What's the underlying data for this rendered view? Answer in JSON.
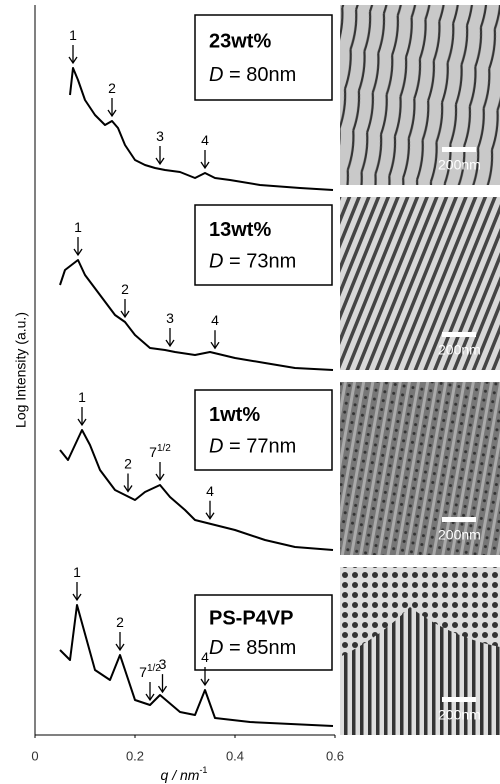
{
  "chart_data": {
    "type": "line",
    "ylabel": "Log Intensity (a.u.)",
    "xlabel": {
      "text": "q / nm",
      "sup": "-1"
    },
    "xlim": [
      0,
      0.6
    ],
    "xticks": [
      0,
      0.2,
      0.4,
      0.6
    ],
    "ylim": [
      0,
      73
    ],
    "color": "#000000",
    "series": [
      {
        "name": "23wt%",
        "spacing": {
          "symbol": "D",
          "text": " = 80nm"
        },
        "scale_bar": "200nm",
        "x": [
          0.07,
          0.076,
          0.086,
          0.1,
          0.12,
          0.14,
          0.154,
          0.166,
          0.18,
          0.2,
          0.22,
          0.24,
          0.26,
          0.29,
          0.32,
          0.34,
          0.36,
          0.39,
          0.45,
          0.53,
          0.596
        ],
        "values": [
          64,
          66.7,
          65.5,
          63.5,
          62,
          61,
          61.4,
          60.7,
          59,
          57.5,
          57,
          56.7,
          56.5,
          56.3,
          55.7,
          56.2,
          55.7,
          55.5,
          55,
          54.7,
          54.5
        ],
        "peaks": [
          {
            "label": "1",
            "q": 0.076
          },
          {
            "label": "2",
            "q": 0.154
          },
          {
            "label": "3",
            "q": 0.25
          },
          {
            "label": "4",
            "q": 0.34
          }
        ]
      },
      {
        "name": "13wt%",
        "spacing": {
          "symbol": "D",
          "text": " = 73nm"
        },
        "scale_bar": "200nm",
        "x": [
          0.05,
          0.06,
          0.086,
          0.1,
          0.13,
          0.16,
          0.18,
          0.2,
          0.23,
          0.26,
          0.28,
          0.32,
          0.35,
          0.4,
          0.46,
          0.52,
          0.596
        ],
        "values": [
          45,
          46.5,
          47.5,
          46,
          44,
          42,
          41.3,
          40,
          38.7,
          38.5,
          38.3,
          38,
          38.3,
          37.7,
          37.2,
          36.7,
          36.5
        ],
        "peaks": [
          {
            "label": "1",
            "q": 0.086
          },
          {
            "label": "2",
            "q": 0.18
          },
          {
            "label": "3",
            "q": 0.27
          },
          {
            "label": "4",
            "q": 0.36
          }
        ]
      },
      {
        "name": "1wt%",
        "spacing": {
          "symbol": "D",
          "text": " = 77nm"
        },
        "scale_bar": "200nm",
        "x": [
          0.05,
          0.066,
          0.094,
          0.11,
          0.13,
          0.16,
          0.18,
          0.2,
          0.22,
          0.25,
          0.27,
          0.3,
          0.32,
          0.36,
          0.4,
          0.46,
          0.52,
          0.596
        ],
        "values": [
          28.5,
          27.5,
          30.5,
          29,
          26.5,
          24.5,
          24,
          23.5,
          24.3,
          25,
          23.8,
          22.5,
          21.5,
          21,
          20.5,
          19.5,
          18.8,
          18.5
        ],
        "peaks": [
          {
            "label": "1",
            "q": 0.094
          },
          {
            "label": "2",
            "q": 0.186
          },
          {
            "label": "7",
            "sup": "1/2",
            "q": 0.25
          },
          {
            "label": "4",
            "q": 0.35
          }
        ]
      },
      {
        "name": "PS-P4VP",
        "spacing": {
          "symbol": "D",
          "text": " = 85nm"
        },
        "scale_bar": "200nm",
        "x": [
          0.05,
          0.07,
          0.084,
          0.12,
          0.15,
          0.17,
          0.2,
          0.23,
          0.25,
          0.29,
          0.32,
          0.34,
          0.36,
          0.43,
          0.596
        ],
        "values": [
          8.5,
          7.5,
          13,
          6.5,
          5.5,
          8,
          3.5,
          3,
          4,
          2.3,
          2,
          4.5,
          1.7,
          1.3,
          0.9
        ],
        "peaks": [
          {
            "label": "1",
            "q": 0.084
          },
          {
            "label": "2",
            "q": 0.17
          },
          {
            "label": "7",
            "sup": "1/2",
            "q": 0.23
          },
          {
            "label": "3",
            "q": 0.255
          },
          {
            "label": "4",
            "q": 0.34
          }
        ]
      }
    ]
  }
}
